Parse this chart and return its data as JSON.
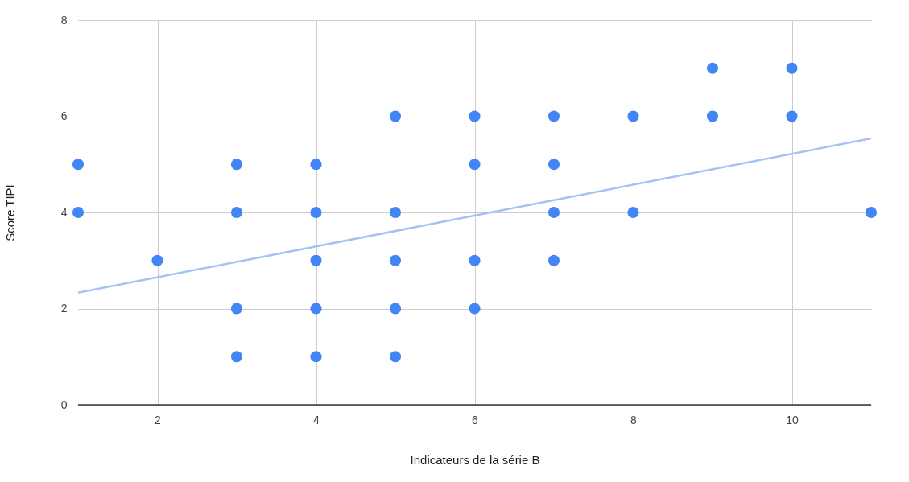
{
  "chart_data": {
    "type": "scatter",
    "xlabel": "Indicateurs de la série B",
    "ylabel": "Score TIPI",
    "xlim": [
      1,
      11
    ],
    "xticks": [
      2,
      4,
      6,
      8,
      10
    ],
    "ylim": [
      0,
      8
    ],
    "yticks": [
      0,
      2,
      4,
      6,
      8
    ],
    "grid": true,
    "series": [
      {
        "color": "#4285f4",
        "marker": "circle",
        "x": [
          1,
          1,
          2,
          3,
          3,
          3,
          3,
          4,
          4,
          4,
          4,
          4,
          5,
          5,
          5,
          5,
          5,
          6,
          6,
          6,
          6,
          7,
          7,
          7,
          7,
          8,
          8,
          9,
          9,
          10,
          10,
          11
        ],
        "values": [
          5,
          4,
          3,
          5,
          4,
          2,
          1,
          5,
          4,
          3,
          2,
          1,
          6,
          4,
          3,
          2,
          1,
          6,
          5,
          3,
          2,
          6,
          5,
          4,
          3,
          6,
          4,
          7,
          6,
          7,
          6,
          4
        ]
      },
      {
        "type": "line",
        "color": "#a4c2f4",
        "x": [
          1,
          11
        ],
        "values": [
          2.33,
          5.54
        ]
      }
    ]
  }
}
